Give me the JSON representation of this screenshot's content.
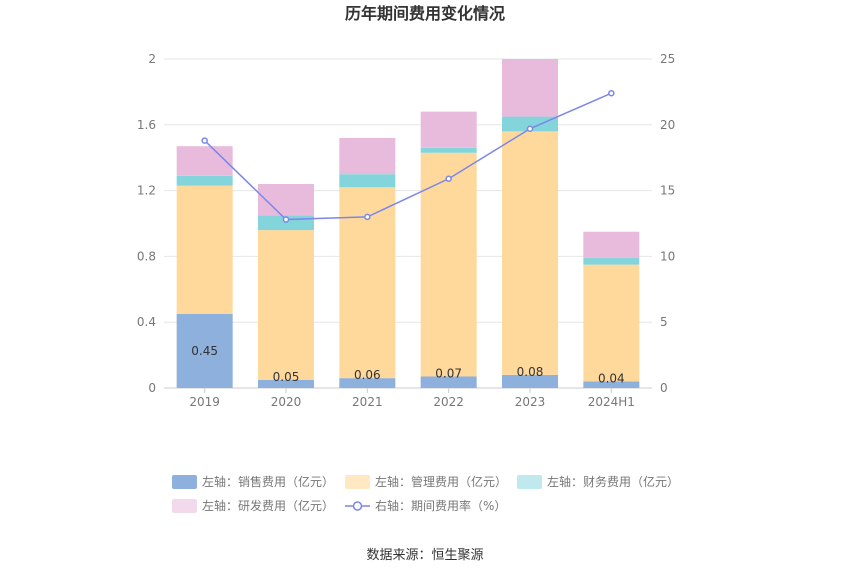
{
  "chart_data": {
    "type": "bar",
    "title": "历年期间费用变化情况",
    "categories": [
      "2019",
      "2020",
      "2021",
      "2022",
      "2023",
      "2024H1"
    ],
    "left_axis": {
      "ylim": [
        0,
        2
      ],
      "ticks": [
        "0",
        "0.4",
        "0.8",
        "1.2",
        "1.6",
        "2"
      ]
    },
    "right_axis": {
      "ylim": [
        0,
        25
      ],
      "ticks": [
        "0",
        "5",
        "10",
        "15",
        "20",
        "25"
      ]
    },
    "series": [
      {
        "name": "左轴：销售费用（亿元）",
        "type": "bar",
        "axis": "left",
        "color": "#8eb0dc",
        "values": [
          0.45,
          0.05,
          0.06,
          0.07,
          0.08,
          0.04
        ],
        "labels": [
          "0.45",
          "0.05",
          "0.06",
          "0.07",
          "0.08",
          "0.04"
        ]
      },
      {
        "name": "左轴：管理费用（亿元）",
        "type": "bar",
        "axis": "left",
        "color": "#ffd99c",
        "values": [
          0.78,
          0.91,
          1.16,
          1.36,
          1.48,
          0.71
        ]
      },
      {
        "name": "左轴：财务费用（亿元）",
        "type": "bar",
        "axis": "left",
        "color": "#84d5db",
        "values": [
          0.06,
          0.09,
          0.08,
          0.03,
          0.09,
          0.04
        ]
      },
      {
        "name": "左轴：研发费用（亿元）",
        "type": "bar",
        "axis": "left",
        "color": "#e8bbdc",
        "values": [
          0.18,
          0.19,
          0.22,
          0.22,
          0.35,
          0.16
        ]
      },
      {
        "name": "右轴：期间费用率（%）",
        "type": "line",
        "axis": "right",
        "color": "#7b86ea",
        "values": [
          18.8,
          12.8,
          13.0,
          15.9,
          19.7,
          22.4
        ]
      }
    ],
    "legend_colors": [
      "#8eb0dc",
      "#ffe8c2",
      "#bfe9ec",
      "#f3d9ec",
      "#7b86ea"
    ],
    "grid": true,
    "legend_position": "bottom"
  },
  "source": "数据来源：恒生聚源"
}
